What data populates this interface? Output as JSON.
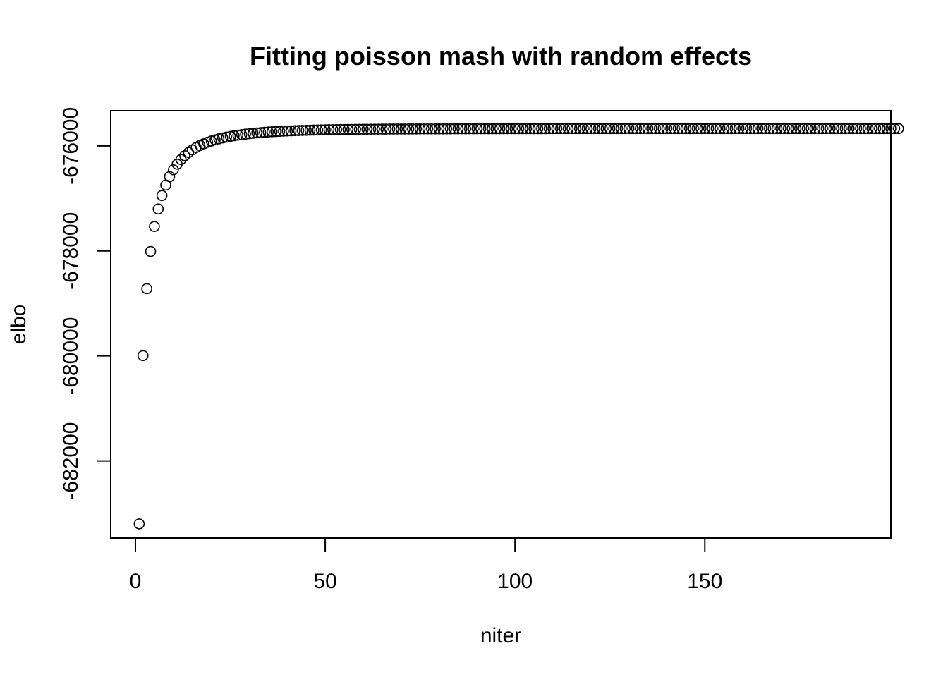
{
  "chart_data": {
    "type": "scatter",
    "title": "Fitting poisson mash with random effects",
    "xlabel": "niter",
    "ylabel": "elbo",
    "xlim": [
      -6.5,
      199
    ],
    "ylim": [
      -683470,
      -675330
    ],
    "xticks": [
      0,
      50,
      100,
      150
    ],
    "xtick_labels": [
      "0",
      "50",
      "100",
      "150"
    ],
    "yticks": [
      -682000,
      -680000,
      -678000,
      -676000
    ],
    "ytick_labels": [
      "-682000",
      "-680000",
      "-678000",
      "-676000"
    ],
    "grid": false,
    "legend": "none",
    "marker": "open-circle",
    "x_range": [
      1,
      192
    ],
    "y": [
      -683200,
      -679995,
      -678720,
      -678010,
      -677535,
      -677200,
      -676945,
      -676745,
      -676585,
      -676455,
      -676348,
      -676260,
      -676187,
      -676126,
      -676074,
      -676030,
      -675992,
      -675960,
      -675932,
      -675907,
      -675885,
      -675865,
      -675848,
      -675833,
      -675819,
      -675806,
      -675795,
      -675785,
      -675776,
      -675768,
      -675760,
      -675753,
      -675747,
      -675741,
      -675736,
      -675731,
      -675727,
      -675723,
      -675719,
      -675716,
      -675713,
      -675710,
      -675707,
      -675705,
      -675703,
      -675701,
      -675699,
      -675697,
      -675695,
      -675694,
      -675692,
      -675691,
      -675690,
      -675689,
      -675688,
      -675687,
      -675686,
      -675685,
      -675684,
      -675683,
      -675683,
      -675682,
      -675681,
      -675681,
      -675680,
      -675680,
      -675679,
      -675679,
      -675678,
      -675678,
      -675678,
      -675677,
      -675677,
      -675677,
      -675676,
      -675676,
      -675676,
      -675676,
      -675675,
      -675675,
      -675675,
      -675675,
      -675675,
      -675674,
      -675674,
      -675674,
      -675674,
      -675674,
      -675674,
      -675673,
      -675673,
      -675673,
      -675673,
      -675673,
      -675673,
      -675673,
      -675673,
      -675672,
      -675672,
      -675672,
      -675672,
      -675672,
      -675672,
      -675672,
      -675672,
      -675672,
      -675672,
      -675672,
      -675671,
      -675671,
      -675671,
      -675671,
      -675671,
      -675671,
      -675671,
      -675671,
      -675671,
      -675671,
      -675671,
      -675671,
      -675671,
      -675671,
      -675671,
      -675671,
      -675671,
      -675671,
      -675670,
      -675670,
      -675670,
      -675670,
      -675670,
      -675670,
      -675670,
      -675670,
      -675670,
      -675670,
      -675670,
      -675670,
      -675670,
      -675670,
      -675670,
      -675670,
      -675670,
      -675670,
      -675670,
      -675670,
      -675670,
      -675670,
      -675670,
      -675670,
      -675670,
      -675670,
      -675670,
      -675670,
      -675670,
      -675670,
      -675670,
      -675670,
      -675670,
      -675670,
      -675670,
      -675670,
      -675670,
      -675670,
      -675670,
      -675670,
      -675670,
      -675670,
      -675670,
      -675670,
      -675670,
      -675670,
      -675670,
      -675670,
      -675670,
      -675670,
      -675670,
      -675670,
      -675670,
      -675670,
      -675670,
      -675670,
      -675670,
      -675670,
      -675670,
      -675670,
      -675670,
      -675670,
      -675670,
      -675670,
      -675670,
      -675670,
      -675670,
      -675670,
      -675670,
      -675670,
      -675670,
      -675670,
      -675670,
      -675670,
      -675670
    ]
  }
}
